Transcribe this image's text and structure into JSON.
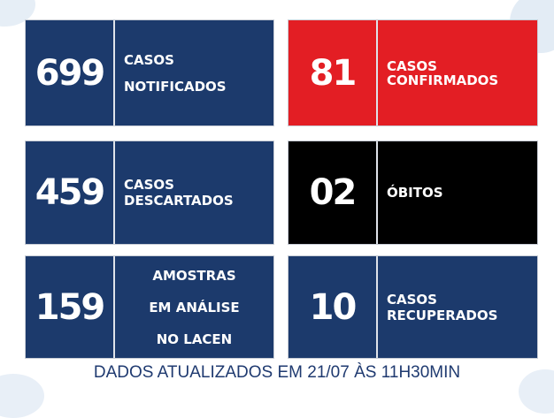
{
  "cards": [
    {
      "value": "699",
      "label": [
        "CASOS",
        "NOTIFICADOS"
      ],
      "color": "#1c3a6c"
    },
    {
      "value": "81",
      "label": [
        "CASOS",
        "CONFIRMADOS"
      ],
      "color": "#e31e24"
    },
    {
      "value": "459",
      "label": [
        "CASOS",
        "DESCARTADOS"
      ],
      "color": "#1c3a6c"
    },
    {
      "value": "02",
      "label": [
        "ÓBITOS"
      ],
      "color": "#000000"
    },
    {
      "value": "159",
      "label": [
        "AMOSTRAS",
        "EM ANÁLISE",
        "NO LACEN"
      ],
      "color": "#1c3a6c"
    },
    {
      "value": "10",
      "label": [
        "CASOS",
        "RECUPERADOS"
      ],
      "color": "#1c3a6c"
    }
  ],
  "footer": "DADOS ATUALIZADOS EM 21/07 ÀS 11H30MIN"
}
